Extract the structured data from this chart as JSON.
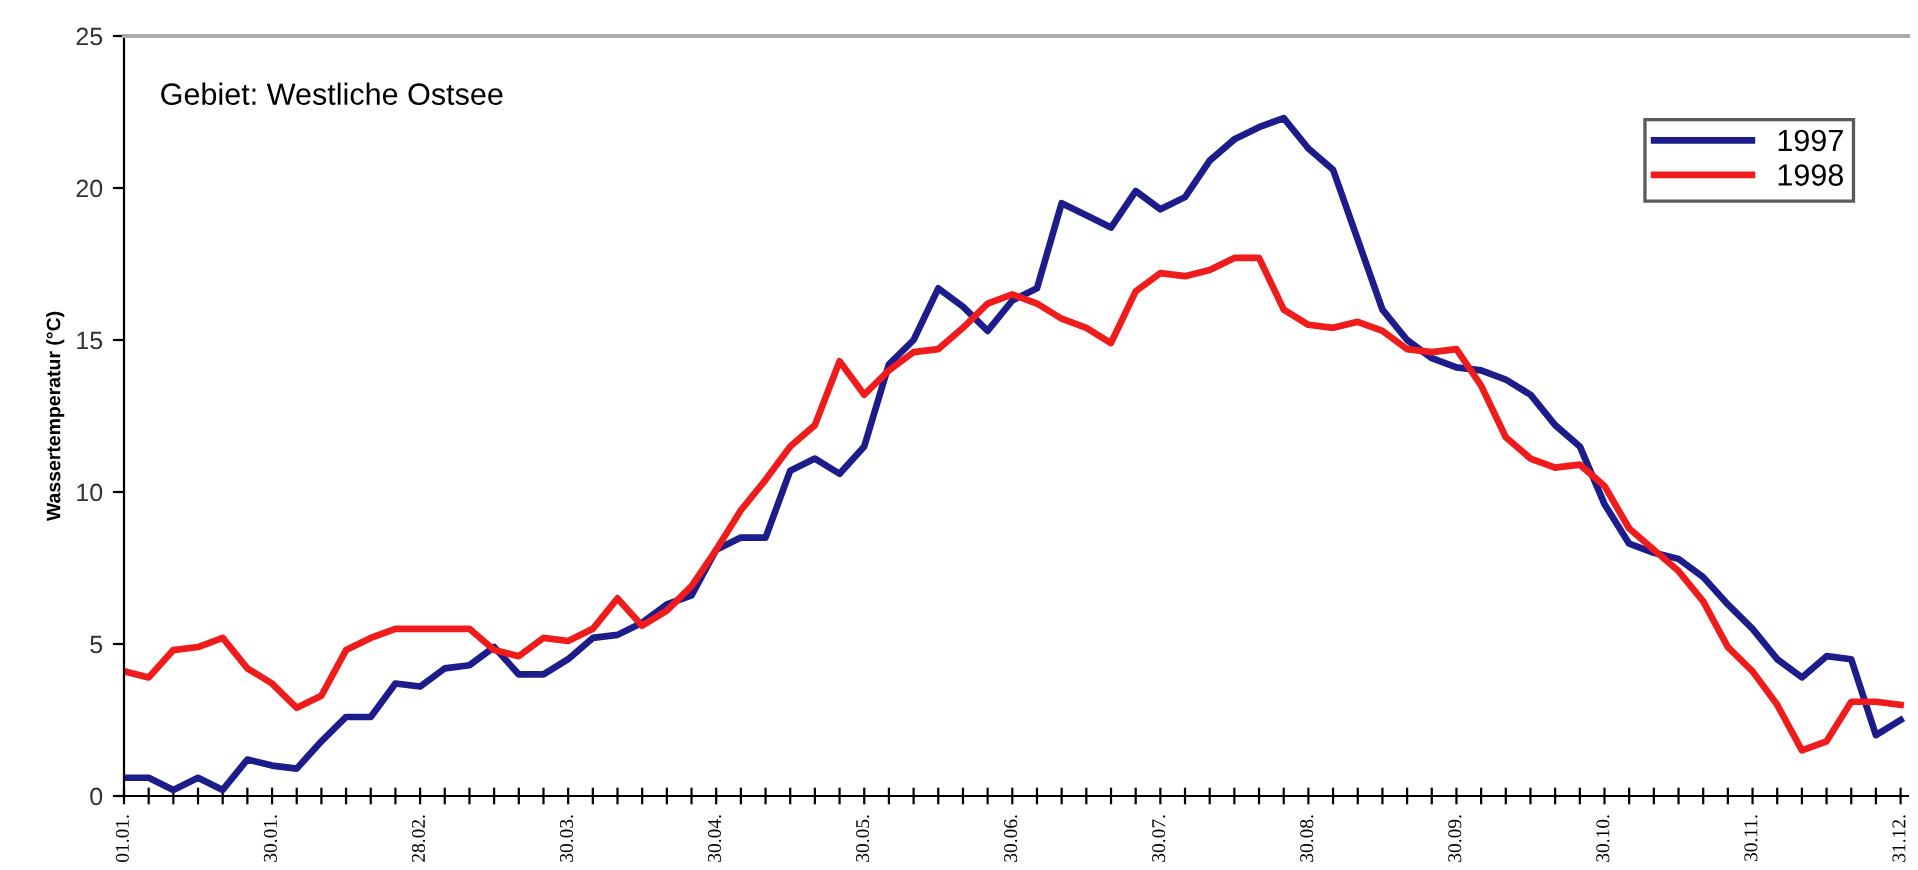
{
  "chart_data": {
    "type": "line",
    "ylabel": "Wassertemperatur (°C)",
    "annotations": [
      "Gebiet: Westliche Ostsee"
    ],
    "categories": [
      "01.01.",
      null,
      null,
      null,
      null,
      null,
      "30.01.",
      null,
      null,
      null,
      null,
      null,
      "28.02.",
      null,
      null,
      null,
      null,
      null,
      "30.03.",
      null,
      null,
      null,
      null,
      null,
      "30.04.",
      null,
      null,
      null,
      null,
      null,
      "30.05.",
      null,
      null,
      null,
      null,
      null,
      "30.06.",
      null,
      null,
      null,
      null,
      null,
      "30.07.",
      null,
      null,
      null,
      null,
      null,
      "30.08.",
      null,
      null,
      null,
      null,
      null,
      "30.09.",
      null,
      null,
      null,
      null,
      null,
      "30.10.",
      null,
      null,
      null,
      null,
      null,
      "30.11.",
      null,
      null,
      null,
      null,
      null,
      "31.12."
    ],
    "series": [
      {
        "name": "1997",
        "color": "#1c1c8a",
        "values": [
          0.6,
          0.6,
          0.2,
          0.6,
          0.2,
          1.2,
          1.0,
          0.9,
          1.8,
          2.6,
          2.6,
          3.7,
          3.6,
          4.2,
          4.3,
          4.9,
          4.0,
          4.0,
          4.5,
          5.2,
          5.3,
          5.7,
          6.3,
          6.6,
          8.1,
          8.5,
          8.5,
          10.7,
          11.1,
          10.6,
          11.5,
          14.2,
          15.0,
          16.7,
          16.1,
          15.3,
          16.3,
          16.7,
          19.5,
          19.1,
          18.7,
          19.9,
          19.3,
          19.7,
          20.9,
          21.6,
          22.0,
          22.3,
          21.3,
          20.6,
          18.3,
          16.0,
          15.0,
          14.4,
          14.1,
          14.0,
          13.7,
          13.2,
          12.2,
          11.5,
          9.6,
          8.3,
          8.0,
          7.8,
          7.2,
          6.3,
          5.5,
          4.5,
          3.9,
          4.6,
          4.5,
          2.0,
          2.5
        ]
      },
      {
        "name": "1998",
        "color": "#f01c1c",
        "values": [
          4.1,
          3.9,
          4.8,
          4.9,
          5.2,
          4.2,
          3.7,
          2.9,
          3.3,
          4.8,
          5.2,
          5.5,
          5.5,
          5.5,
          5.5,
          4.8,
          4.6,
          5.2,
          5.1,
          5.5,
          6.5,
          5.6,
          6.1,
          6.9,
          8.1,
          9.4,
          10.4,
          11.5,
          12.2,
          14.3,
          13.2,
          14.0,
          14.6,
          14.7,
          15.4,
          16.2,
          16.5,
          16.2,
          15.7,
          15.4,
          14.9,
          16.6,
          17.2,
          17.1,
          17.3,
          17.7,
          17.7,
          16.0,
          15.5,
          15.4,
          15.6,
          15.3,
          14.7,
          14.6,
          14.7,
          13.5,
          11.8,
          11.1,
          10.8,
          10.9,
          10.2,
          8.8,
          8.1,
          7.4,
          6.4,
          4.9,
          4.1,
          3.0,
          1.5,
          1.8,
          3.1,
          3.1,
          3.0
        ]
      }
    ],
    "ylim": [
      0,
      25
    ],
    "yticks": [
      0,
      5,
      10,
      15,
      20,
      25
    ],
    "grid": false,
    "legend": "top right",
    "marker": "none",
    "line_style": "solid"
  }
}
